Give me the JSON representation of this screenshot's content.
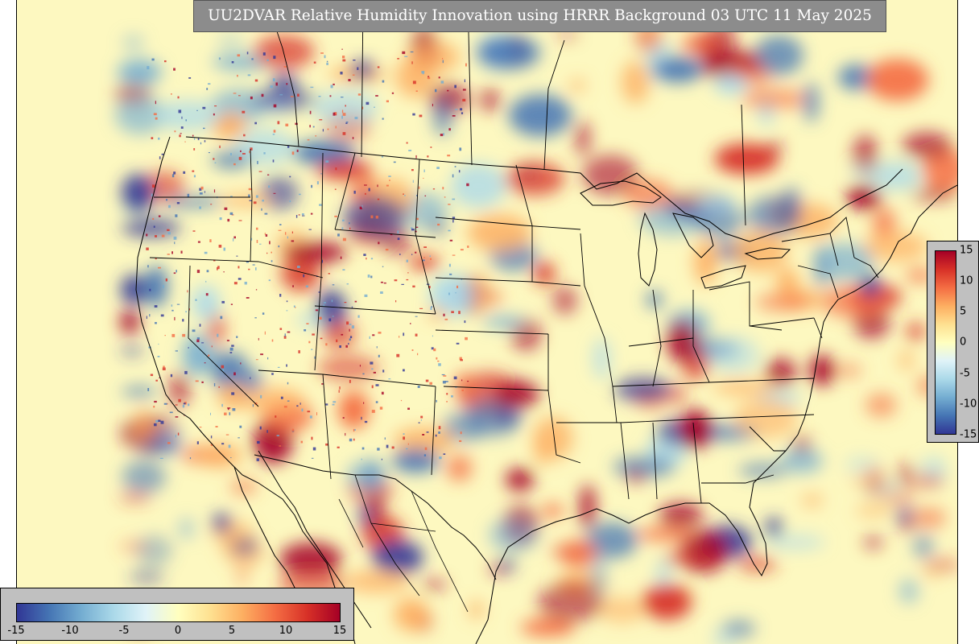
{
  "title": "UU2DVAR Relative Humidity Innovation using HRRR Background 03 UTC 11 May 2025",
  "colorbar": {
    "min": -15,
    "max": 15,
    "ticks_vertical": [
      "15",
      "10",
      "5",
      "0",
      "-5",
      "-10",
      "-15"
    ],
    "ticks_horizontal": [
      "-15",
      "-10",
      "-5",
      "0",
      "5",
      "10",
      "15"
    ],
    "colors": [
      "#313695",
      "#4575b4",
      "#74add1",
      "#abd9e9",
      "#e0f3f8",
      "#ffffbf",
      "#fee090",
      "#fdae61",
      "#f46d43",
      "#d73027",
      "#a50026"
    ]
  },
  "map": {
    "background_color": "#fdf8c0",
    "boundary_color": "#000000"
  }
}
